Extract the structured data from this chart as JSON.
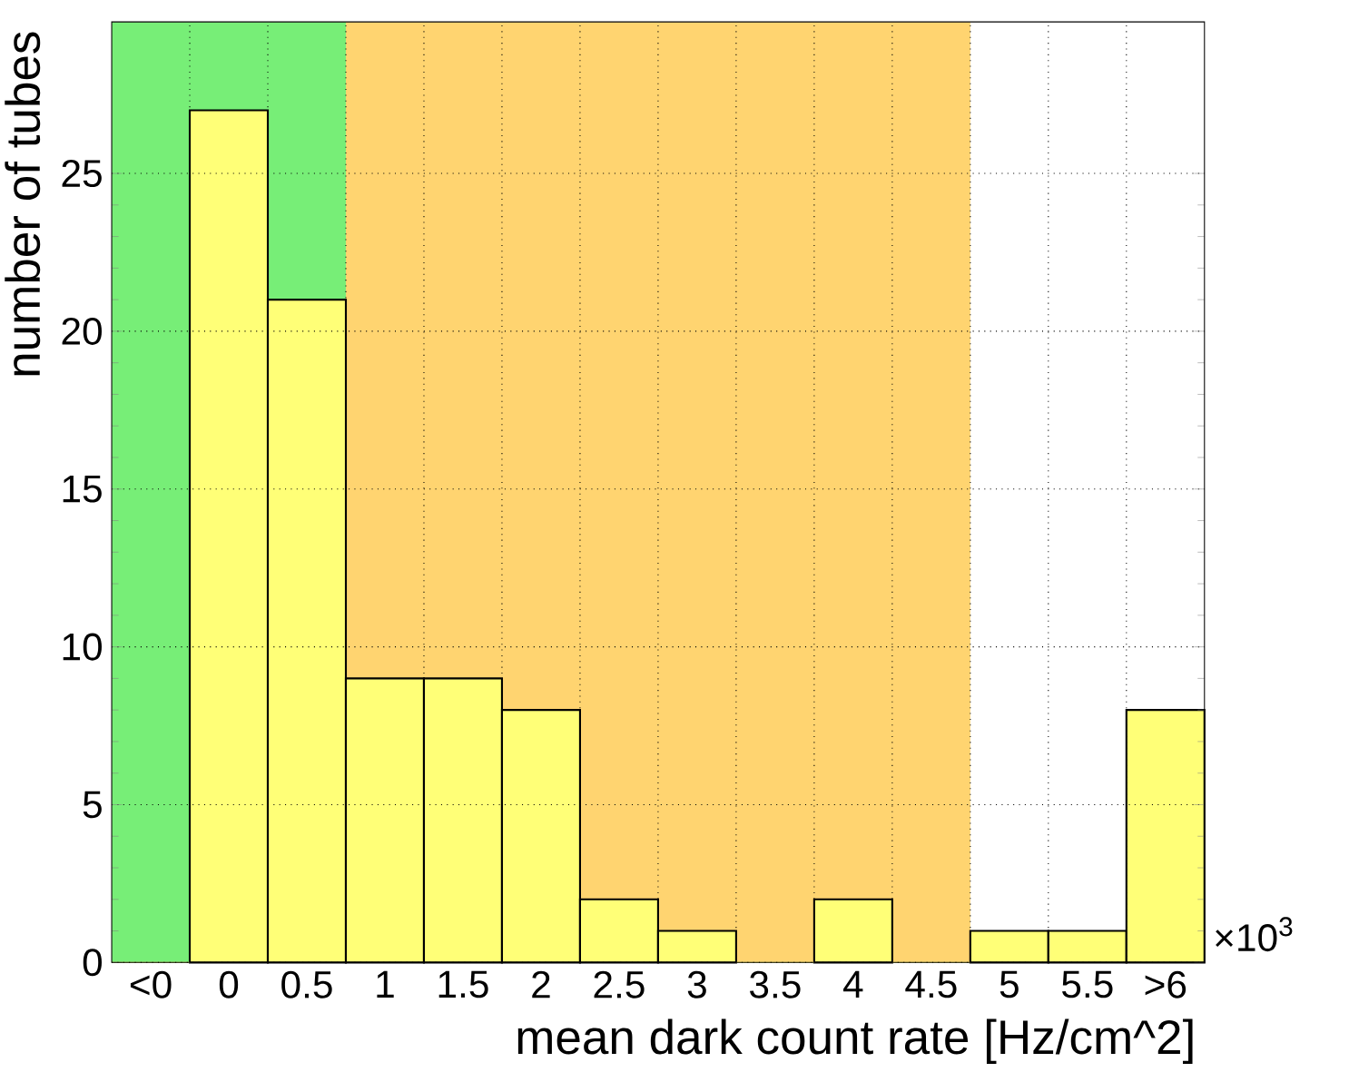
{
  "chart_data": {
    "type": "bar",
    "xlabel": "mean dark count rate [Hz/cm^2]",
    "ylabel": "number of tubes",
    "categories": [
      "<0",
      "0",
      "0.5",
      "1",
      "1.5",
      "2",
      "2.5",
      "3",
      "3.5",
      "4",
      "4.5",
      "5",
      "5.5",
      ">6"
    ],
    "values": [
      0,
      27,
      21,
      9,
      9,
      8,
      2,
      1,
      0,
      2,
      0,
      1,
      1,
      8
    ],
    "color": "#ffff77",
    "ylim": [
      0,
      29.8
    ],
    "yticks": [
      0,
      5,
      10,
      15,
      20,
      25
    ],
    "grid": true,
    "bands": [
      {
        "axis": "x",
        "from": "<0",
        "to": "0.5",
        "color": "#77ee77"
      },
      {
        "axis": "x",
        "from": "1",
        "to": "4.5",
        "color": "#ffd470"
      }
    ],
    "annotations": [
      "×10$^{3}$"
    ]
  }
}
